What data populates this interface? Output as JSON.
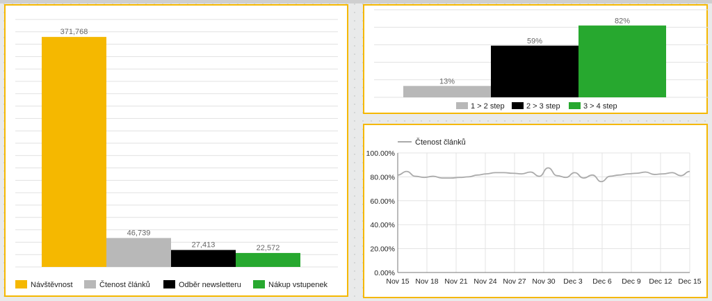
{
  "colors": {
    "gold": "#F5B800",
    "gray": "#B8B8B8",
    "black": "#000000",
    "green": "#27A82F",
    "line": "#AAAAAA"
  },
  "chart_data": [
    {
      "type": "bar",
      "categories": [
        "Návštěvnost",
        "Čtenost článků",
        "Odběr newsletteru",
        "Nákup vstupenek"
      ],
      "values": [
        371768,
        46739,
        27413,
        22572
      ],
      "value_labels": [
        "371,768",
        "46,739",
        "27,413",
        "22,572"
      ],
      "ylim": [
        0,
        400000
      ],
      "grid": true,
      "legend": "bottom"
    },
    {
      "type": "bar",
      "categories": [
        "1 > 2 step",
        "2 > 3 step",
        "3 > 4 step"
      ],
      "values": [
        13,
        59,
        82
      ],
      "value_labels": [
        "13%",
        "59%",
        "82%"
      ],
      "ylim": [
        0,
        100
      ],
      "grid": true,
      "legend": "bottom"
    },
    {
      "type": "line",
      "series": [
        {
          "name": "Čtenost článků",
          "values": [
            81.5,
            84.5,
            80.5,
            79.5,
            80.5,
            79.0,
            79.0,
            79.5,
            80.0,
            81.5,
            82.5,
            83.5,
            83.5,
            83.0,
            82.5,
            84.0,
            80.5,
            87.5,
            81.0,
            79.5,
            83.5,
            79.0,
            81.5,
            76.0,
            80.5,
            81.5,
            82.5,
            83.0,
            84.0,
            82.0,
            82.5,
            83.5,
            81.0,
            84.5
          ]
        }
      ],
      "x_ticks": [
        "Nov 15",
        "Nov 18",
        "Nov 21",
        "Nov 24",
        "Nov 27",
        "Nov 30",
        "Dec 3",
        "Dec 6",
        "Dec 9",
        "Dec 12",
        "Dec 15"
      ],
      "y_ticks": [
        "0.00%",
        "20.00%",
        "40.00%",
        "60.00%",
        "80.00%",
        "100.00%"
      ],
      "ylim": [
        0,
        100
      ],
      "grid": true,
      "legend": "top-left"
    }
  ]
}
